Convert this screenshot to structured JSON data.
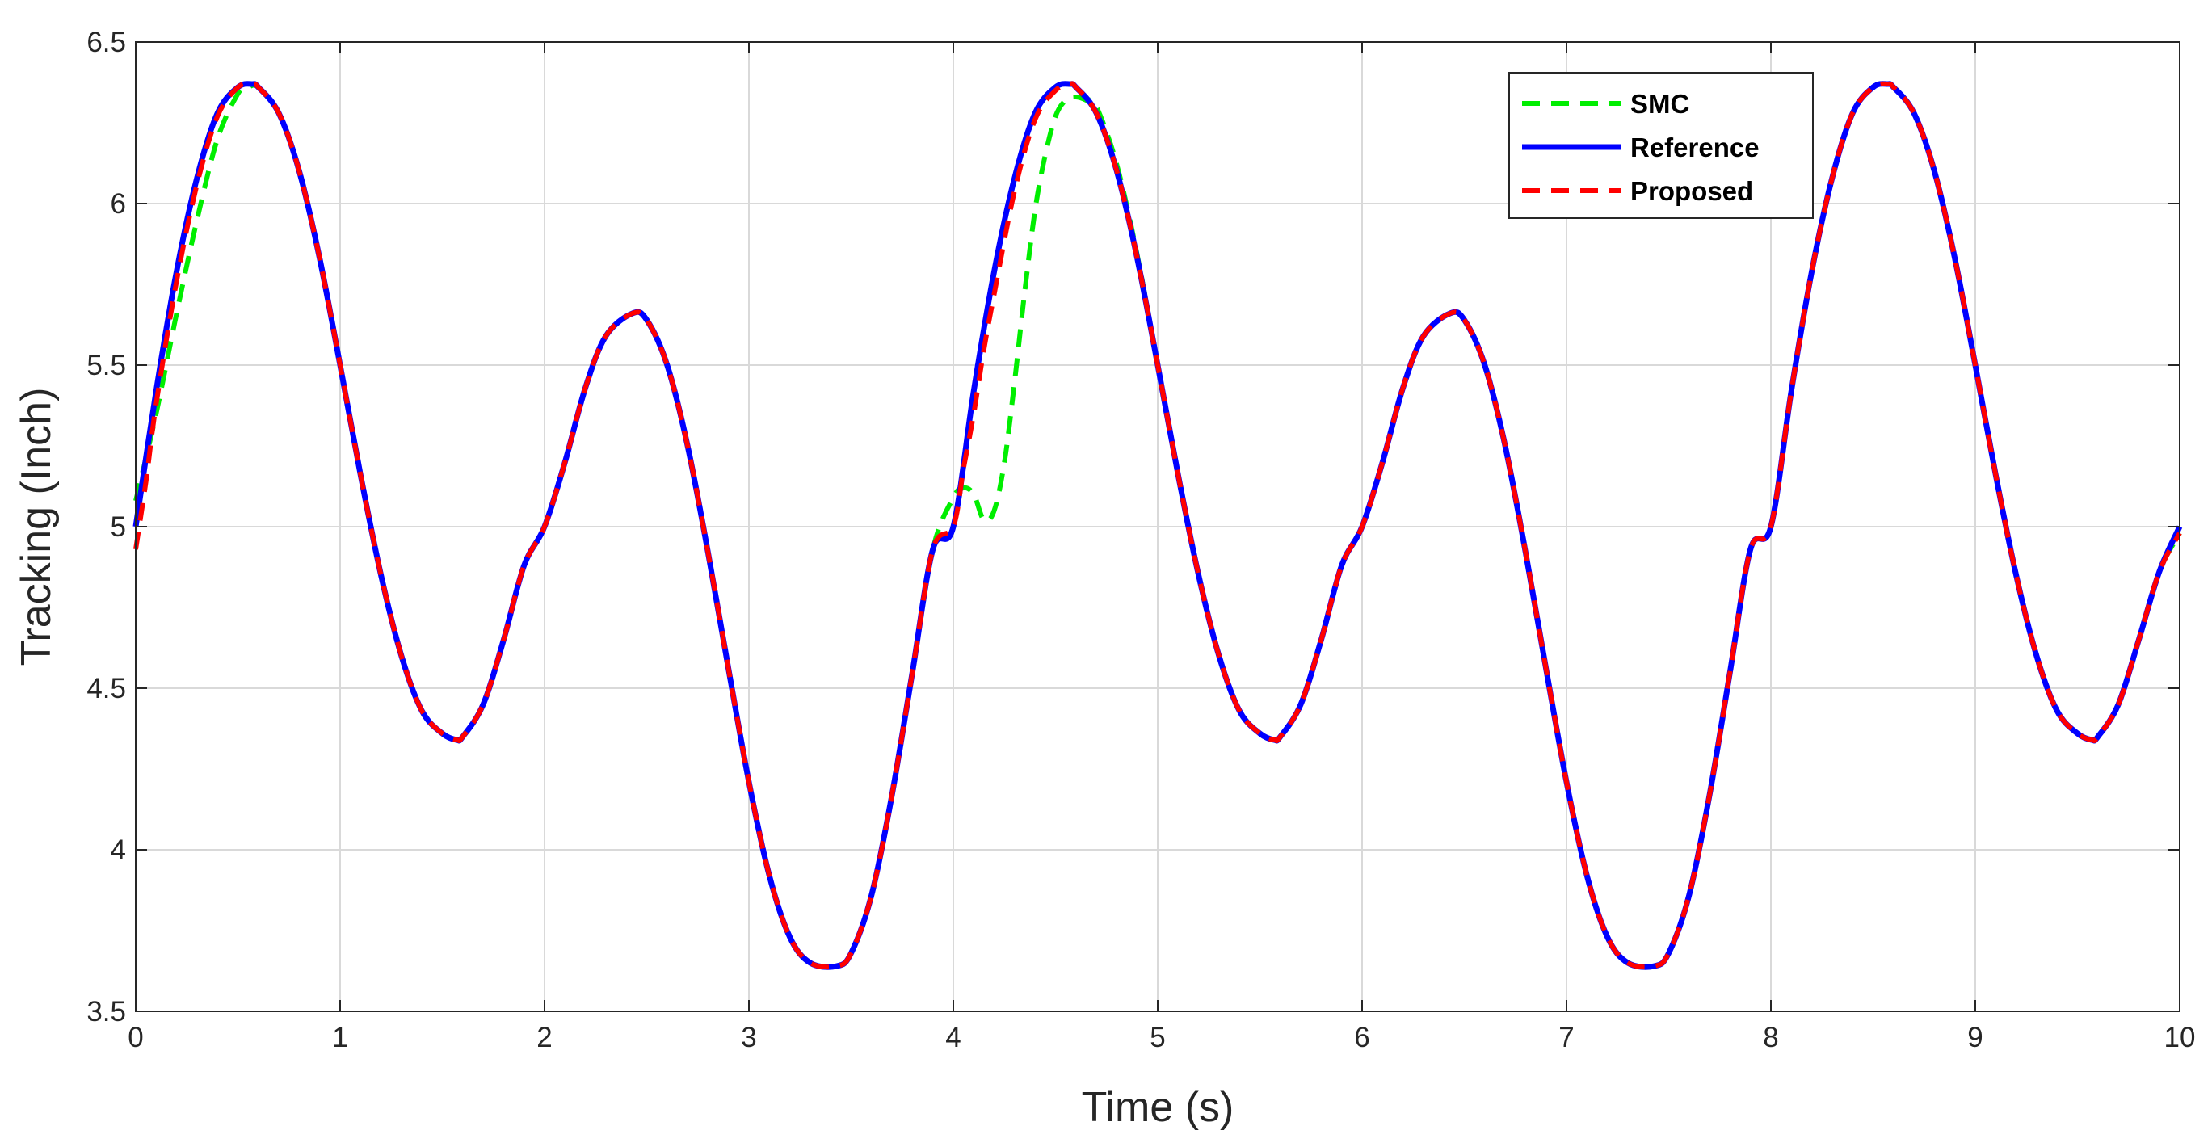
{
  "chart_data": {
    "type": "line",
    "xlabel": "Time (s)",
    "ylabel": "Tracking (Inch)",
    "xlim": [
      0,
      10
    ],
    "ylim": [
      3.5,
      6.5
    ],
    "xticks": [
      "0",
      "1",
      "2",
      "3",
      "4",
      "5",
      "6",
      "7",
      "8",
      "9",
      "10"
    ],
    "yticks": [
      "3.5",
      "4",
      "4.5",
      "5",
      "5.5",
      "6",
      "6.5"
    ],
    "grid": true,
    "legend_position": "top-right",
    "colors": {
      "SMC": "#00ee00",
      "Reference": "#0000ff",
      "Proposed": "#ff0000",
      "grid": "#d9d9d9",
      "axis": "#262626"
    },
    "series": [
      {
        "name": "SMC",
        "style": "dashed",
        "x": [
          0,
          0.1,
          0.2,
          0.3,
          0.4,
          0.5,
          0.55,
          0.6,
          0.7,
          0.8,
          0.9,
          1.0,
          1.1,
          1.2,
          1.3,
          1.4,
          1.5,
          1.57,
          1.6,
          1.7,
          1.8,
          1.9,
          2.0,
          2.1,
          2.2,
          2.3,
          2.43,
          2.5,
          2.6,
          2.7,
          2.8,
          2.9,
          3.0,
          3.1,
          3.2,
          3.3,
          3.43,
          3.5,
          3.6,
          3.7,
          3.8,
          3.9,
          4.0,
          4.05,
          4.1,
          4.15,
          4.2,
          4.25,
          4.3,
          4.35,
          4.4,
          4.45,
          4.5,
          4.55,
          4.6,
          4.65,
          4.7,
          4.8,
          4.9,
          5.0,
          5.1,
          5.2,
          5.3,
          5.4,
          5.5,
          5.57,
          5.6,
          5.7,
          5.8,
          5.9,
          6.0,
          6.1,
          6.2,
          6.3,
          6.43,
          6.5,
          6.6,
          6.7,
          6.8,
          6.9,
          7.0,
          7.1,
          7.2,
          7.3,
          7.43,
          7.5,
          7.6,
          7.7,
          7.8,
          7.9,
          8.0,
          8.1,
          8.2,
          8.3,
          8.4,
          8.5,
          8.57,
          8.6,
          8.7,
          8.8,
          8.9,
          9.0,
          9.1,
          9.2,
          9.3,
          9.4,
          9.5,
          9.57,
          9.6,
          9.7,
          9.8,
          9.9,
          10.0
        ],
        "y": [
          5.08,
          5.35,
          5.66,
          5.95,
          6.2,
          6.34,
          6.36,
          6.36,
          6.28,
          6.1,
          5.83,
          5.5,
          5.16,
          4.85,
          4.6,
          4.43,
          4.36,
          4.34,
          4.35,
          4.45,
          4.65,
          4.88,
          5.0,
          5.2,
          5.43,
          5.59,
          5.66,
          5.64,
          5.5,
          5.25,
          4.92,
          4.56,
          4.21,
          3.92,
          3.73,
          3.65,
          3.64,
          3.68,
          3.86,
          4.17,
          4.55,
          4.93,
          5.09,
          5.12,
          5.1,
          5.02,
          5.05,
          5.2,
          5.45,
          5.73,
          5.98,
          6.15,
          6.27,
          6.32,
          6.33,
          6.32,
          6.3,
          6.12,
          5.84,
          5.5,
          5.16,
          4.85,
          4.6,
          4.43,
          4.36,
          4.34,
          4.35,
          4.45,
          4.65,
          4.88,
          5.0,
          5.2,
          5.43,
          5.59,
          5.66,
          5.64,
          5.5,
          5.25,
          4.92,
          4.56,
          4.21,
          3.92,
          3.73,
          3.65,
          3.64,
          3.68,
          3.86,
          4.17,
          4.55,
          4.93,
          5.0,
          5.42,
          5.79,
          6.08,
          6.28,
          6.36,
          6.37,
          6.36,
          6.28,
          6.1,
          5.83,
          5.5,
          5.16,
          4.85,
          4.6,
          4.43,
          4.36,
          4.34,
          4.35,
          4.45,
          4.65,
          4.86,
          4.98
        ]
      },
      {
        "name": "Reference",
        "style": "solid",
        "x": [
          0,
          0.1,
          0.2,
          0.3,
          0.4,
          0.5,
          0.57,
          0.6,
          0.7,
          0.8,
          0.9,
          1.0,
          1.1,
          1.2,
          1.3,
          1.4,
          1.5,
          1.57,
          1.6,
          1.7,
          1.8,
          1.9,
          2.0,
          2.1,
          2.2,
          2.3,
          2.43,
          2.5,
          2.6,
          2.7,
          2.8,
          2.9,
          3.0,
          3.1,
          3.2,
          3.3,
          3.43,
          3.5,
          3.6,
          3.7,
          3.8,
          3.9,
          4.0,
          4.1,
          4.2,
          4.3,
          4.4,
          4.5,
          4.57,
          4.6,
          4.7,
          4.8,
          4.9,
          5.0,
          5.1,
          5.2,
          5.3,
          5.4,
          5.5,
          5.57,
          5.6,
          5.7,
          5.8,
          5.9,
          6.0,
          6.1,
          6.2,
          6.3,
          6.43,
          6.5,
          6.6,
          6.7,
          6.8,
          6.9,
          7.0,
          7.1,
          7.2,
          7.3,
          7.43,
          7.5,
          7.6,
          7.7,
          7.8,
          7.9,
          8.0,
          8.1,
          8.2,
          8.3,
          8.4,
          8.5,
          8.57,
          8.6,
          8.7,
          8.8,
          8.9,
          9.0,
          9.1,
          9.2,
          9.3,
          9.4,
          9.5,
          9.57,
          9.6,
          9.7,
          9.8,
          9.9,
          10.0
        ],
        "y": [
          5.0,
          5.42,
          5.79,
          6.08,
          6.28,
          6.36,
          6.37,
          6.36,
          6.28,
          6.1,
          5.83,
          5.5,
          5.16,
          4.85,
          4.6,
          4.43,
          4.36,
          4.34,
          4.35,
          4.45,
          4.65,
          4.88,
          5.0,
          5.2,
          5.43,
          5.59,
          5.66,
          5.64,
          5.5,
          5.25,
          4.92,
          4.56,
          4.21,
          3.92,
          3.73,
          3.65,
          3.64,
          3.68,
          3.86,
          4.17,
          4.55,
          4.93,
          5.0,
          5.42,
          5.79,
          6.08,
          6.28,
          6.36,
          6.37,
          6.36,
          6.28,
          6.1,
          5.83,
          5.5,
          5.16,
          4.85,
          4.6,
          4.43,
          4.36,
          4.34,
          4.35,
          4.45,
          4.65,
          4.88,
          5.0,
          5.2,
          5.43,
          5.59,
          5.66,
          5.64,
          5.5,
          5.25,
          4.92,
          4.56,
          4.21,
          3.92,
          3.73,
          3.65,
          3.64,
          3.68,
          3.86,
          4.17,
          4.55,
          4.93,
          5.0,
          5.42,
          5.79,
          6.08,
          6.28,
          6.36,
          6.37,
          6.36,
          6.28,
          6.1,
          5.83,
          5.5,
          5.16,
          4.85,
          4.6,
          4.43,
          4.36,
          4.34,
          4.35,
          4.45,
          4.65,
          4.86,
          5.0
        ]
      },
      {
        "name": "Proposed",
        "style": "dashed",
        "x": [
          0,
          0.05,
          0.1,
          0.2,
          0.3,
          0.4,
          0.5,
          0.57,
          0.6,
          0.7,
          0.8,
          0.9,
          1.0,
          1.1,
          1.2,
          1.3,
          1.4,
          1.5,
          1.57,
          1.6,
          1.7,
          1.8,
          1.9,
          2.0,
          2.1,
          2.2,
          2.3,
          2.43,
          2.5,
          2.6,
          2.7,
          2.8,
          2.9,
          3.0,
          3.1,
          3.2,
          3.3,
          3.43,
          3.5,
          3.6,
          3.7,
          3.8,
          3.9,
          4.0,
          4.05,
          4.1,
          4.15,
          4.2,
          4.3,
          4.4,
          4.5,
          4.57,
          4.6,
          4.7,
          4.8,
          4.9,
          5.0,
          5.1,
          5.2,
          5.3,
          5.4,
          5.5,
          5.57,
          5.6,
          5.7,
          5.8,
          5.9,
          6.0,
          6.1,
          6.2,
          6.3,
          6.43,
          6.5,
          6.6,
          6.7,
          6.8,
          6.9,
          7.0,
          7.1,
          7.2,
          7.3,
          7.43,
          7.5,
          7.6,
          7.7,
          7.8,
          7.9,
          8.0,
          8.1,
          8.2,
          8.3,
          8.4,
          8.5,
          8.57,
          8.6,
          8.7,
          8.8,
          8.9,
          9.0,
          9.1,
          9.2,
          9.3,
          9.4,
          9.5,
          9.57,
          9.6,
          9.7,
          9.8,
          9.9,
          10.0
        ],
        "y": [
          4.93,
          5.14,
          5.38,
          5.76,
          6.06,
          6.27,
          6.36,
          6.37,
          6.36,
          6.28,
          6.1,
          5.83,
          5.5,
          5.16,
          4.85,
          4.6,
          4.43,
          4.36,
          4.34,
          4.35,
          4.45,
          4.65,
          4.88,
          5.0,
          5.2,
          5.43,
          5.59,
          5.66,
          5.64,
          5.5,
          5.25,
          4.92,
          4.56,
          4.21,
          3.92,
          3.73,
          3.65,
          3.64,
          3.68,
          3.86,
          4.17,
          4.55,
          4.93,
          5.0,
          5.18,
          5.35,
          5.55,
          5.72,
          6.04,
          6.26,
          6.35,
          6.37,
          6.36,
          6.28,
          6.1,
          5.83,
          5.5,
          5.16,
          4.85,
          4.6,
          4.43,
          4.36,
          4.34,
          4.35,
          4.45,
          4.65,
          4.88,
          5.0,
          5.2,
          5.43,
          5.59,
          5.66,
          5.64,
          5.5,
          5.25,
          4.92,
          4.56,
          4.21,
          3.92,
          3.73,
          3.65,
          3.64,
          3.68,
          3.86,
          4.17,
          4.55,
          4.93,
          5.0,
          5.42,
          5.79,
          6.08,
          6.28,
          6.36,
          6.37,
          6.36,
          6.28,
          6.1,
          5.83,
          5.5,
          5.16,
          4.85,
          4.6,
          4.43,
          4.36,
          4.34,
          4.35,
          4.45,
          4.65,
          4.86,
          4.98
        ]
      }
    ]
  }
}
